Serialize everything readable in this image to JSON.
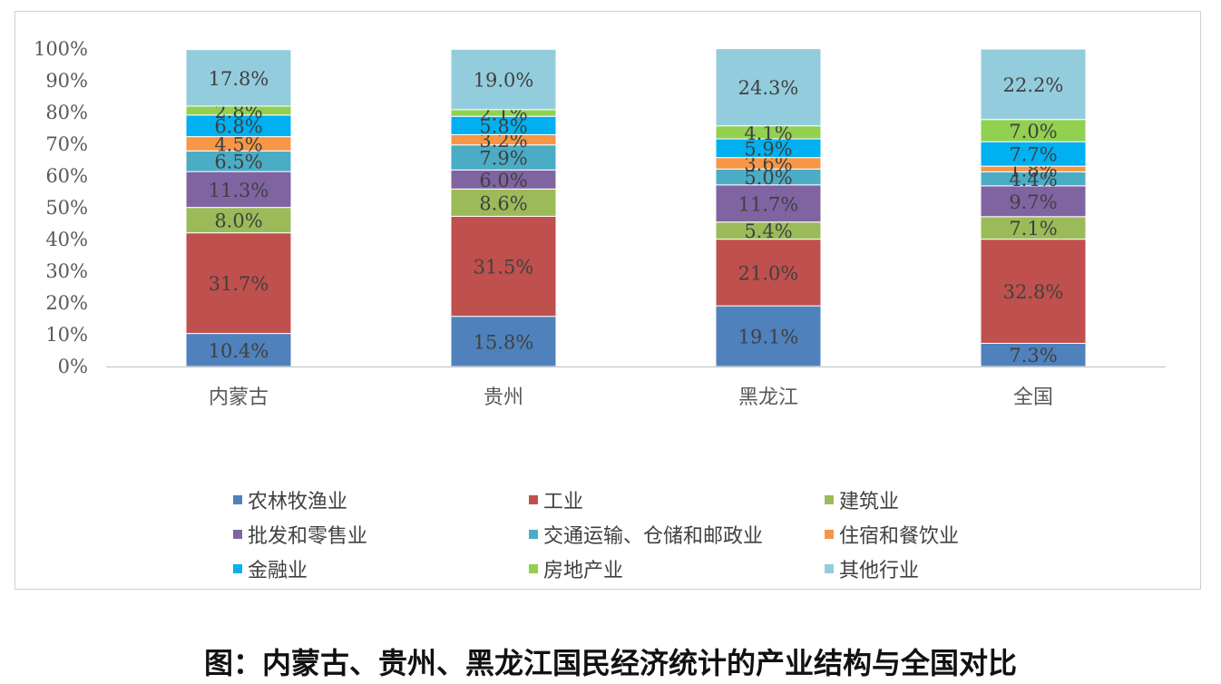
{
  "caption": "图：内蒙古、贵州、黑龙江国民经济统计的产业结构与全国对比",
  "chart_data": {
    "type": "bar",
    "stacked": true,
    "percent": true,
    "title": "",
    "xlabel": "",
    "ylabel": "",
    "ylim": [
      0,
      100
    ],
    "yticks": [
      "0%",
      "10%",
      "20%",
      "30%",
      "40%",
      "50%",
      "60%",
      "70%",
      "80%",
      "90%",
      "100%"
    ],
    "categories": [
      "内蒙古",
      "贵州",
      "黑龙江",
      "全国"
    ],
    "legend_position": "bottom",
    "grid": false,
    "series": [
      {
        "name": "农林牧渔业",
        "color": "#4F81BD",
        "values": [
          10.4,
          15.8,
          19.1,
          7.3
        ],
        "labels": [
          "10.4%",
          "15.8%",
          "19.1%",
          "7.3%"
        ]
      },
      {
        "name": "工业",
        "color": "#C0504D",
        "values": [
          31.7,
          31.5,
          21.0,
          32.8
        ],
        "labels": [
          "31.7%",
          "31.5%",
          "21.0%",
          "32.8%"
        ]
      },
      {
        "name": "建筑业",
        "color": "#9BBB59",
        "values": [
          8.0,
          8.6,
          5.4,
          7.1
        ],
        "labels": [
          "8.0%",
          "8.6%",
          "5.4%",
          "7.1%"
        ]
      },
      {
        "name": "批发和零售业",
        "color": "#8064A2",
        "values": [
          11.3,
          6.0,
          11.7,
          9.7
        ],
        "labels": [
          "11.3%",
          "6.0%",
          "11.7%",
          "9.7%"
        ]
      },
      {
        "name": "交通运输、仓储和邮政业",
        "color": "#4BACC6",
        "values": [
          6.5,
          7.9,
          5.0,
          4.4
        ],
        "labels": [
          "6.5%",
          "7.9%",
          "5.0%",
          "4.4%"
        ]
      },
      {
        "name": "住宿和餐饮业",
        "color": "#F79646",
        "values": [
          4.5,
          3.2,
          3.6,
          1.8
        ],
        "labels": [
          "4.5%",
          "3.2%",
          "3.6%",
          "1.8%"
        ]
      },
      {
        "name": "金融业",
        "color": "#00B0F0",
        "values": [
          6.8,
          5.8,
          5.9,
          7.7
        ],
        "labels": [
          "6.8%",
          "5.8%",
          "5.9%",
          "7.7%"
        ]
      },
      {
        "name": "房地产业",
        "color": "#92D050",
        "values": [
          2.8,
          2.1,
          4.1,
          7.0
        ],
        "labels": [
          "2.8%",
          "2.1%",
          "4.1%",
          "7.0%"
        ]
      },
      {
        "name": "其他行业",
        "color": "#93CDDD",
        "values": [
          17.8,
          19.0,
          24.3,
          22.2
        ],
        "labels": [
          "17.8%",
          "19.0%",
          "24.3%",
          "22.2%"
        ]
      }
    ]
  }
}
